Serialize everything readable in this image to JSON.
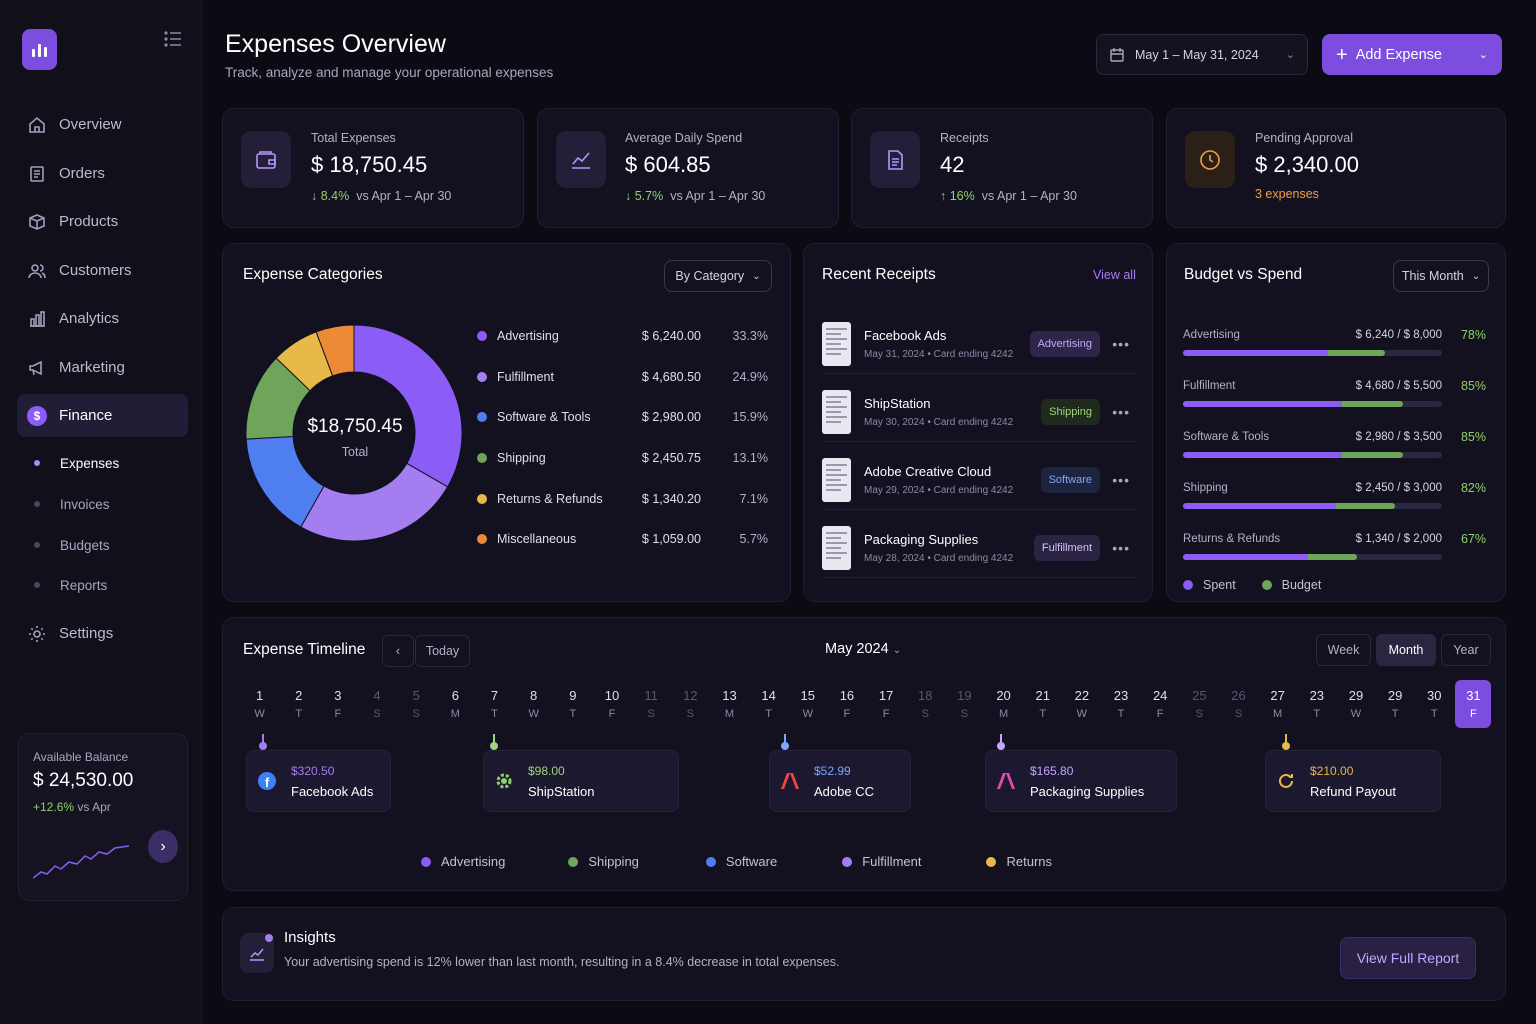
{
  "sidebar": {
    "nav": [
      {
        "label": "Overview",
        "icon": "home-icon"
      },
      {
        "label": "Orders",
        "icon": "orders-icon"
      },
      {
        "label": "Products",
        "icon": "box-icon"
      },
      {
        "label": "Customers",
        "icon": "users-icon"
      },
      {
        "label": "Analytics",
        "icon": "chart-icon"
      },
      {
        "label": "Marketing",
        "icon": "megaphone-icon"
      },
      {
        "label": "Finance",
        "icon": "dollar-icon"
      }
    ],
    "finance_sub": [
      "Expenses",
      "Invoices",
      "Budgets",
      "Reports"
    ],
    "settings": "Settings",
    "balance": {
      "label": "Available Balance",
      "amount": "$ 24,530.00",
      "change": "+12.6%",
      "change_suffix": "vs Apr"
    }
  },
  "header": {
    "title": "Expenses Overview",
    "subtitle": "Track, analyze and manage your operational expenses",
    "date_range": "May 1 – May 31, 2024",
    "add_label": "Add Expense"
  },
  "stats": [
    {
      "label": "Total Expenses",
      "value": "$ 18,750.45",
      "change": "8.4%",
      "suffix": "vs Apr 1 – Apr 30",
      "arrow": "↓"
    },
    {
      "label": "Average Daily Spend",
      "value": "$ 604.85",
      "change": "5.7%",
      "suffix": "vs Apr 1 – Apr 30",
      "arrow": "↓"
    },
    {
      "label": "Receipts",
      "value": "42",
      "change": "16%",
      "suffix": "vs Apr 1 – Apr 30",
      "arrow": "↑"
    },
    {
      "label": "Pending Approval",
      "value": "$ 2,340.00",
      "note": "3 expenses"
    }
  ],
  "categories": {
    "title": "Expense Categories",
    "filter": "By Category",
    "total": "$18,750.45",
    "total_label": "Total",
    "items": [
      {
        "name": "Advertising",
        "amount": "$ 6,240.00",
        "pct": "33.3%",
        "color": "#8b5cf6"
      },
      {
        "name": "Fulfillment",
        "amount": "$ 4,680.50",
        "pct": "24.9%",
        "color": "#a47ef0"
      },
      {
        "name": "Software & Tools",
        "amount": "$ 2,980.00",
        "pct": "15.9%",
        "color": "#4f7ef0"
      },
      {
        "name": "Shipping",
        "amount": "$ 2,450.75",
        "pct": "13.1%",
        "color": "#6fa45b"
      },
      {
        "name": "Returns & Refunds",
        "amount": "$ 1,340.20",
        "pct": "7.1%",
        "color": "#e6b949"
      },
      {
        "name": "Miscellaneous",
        "amount": "$ 1,059.00",
        "pct": "5.7%",
        "color": "#ec8a36"
      }
    ]
  },
  "chart_data": {
    "type": "pie",
    "categories": [
      "Advertising",
      "Fulfillment",
      "Software & Tools",
      "Shipping",
      "Returns & Refunds",
      "Miscellaneous"
    ],
    "values": [
      33.3,
      24.9,
      15.9,
      13.1,
      7.1,
      5.7
    ],
    "title": "Expense Categories"
  },
  "receipts": {
    "title": "Recent Receipts",
    "view_all": "View all",
    "items": [
      {
        "name": "Facebook Ads",
        "meta": "May 31, 2024  •  Card ending 4242",
        "tag": "Advertising",
        "tag_color": "#c4a6ff",
        "tag_bg": "#2e2548"
      },
      {
        "name": "ShipStation",
        "meta": "May 30, 2024  •  Card ending 4242",
        "tag": "Shipping",
        "tag_color": "#9fd67d",
        "tag_bg": "#1f2a1d"
      },
      {
        "name": "Adobe Creative Cloud",
        "meta": "May 29, 2024  •  Card ending 4242",
        "tag": "Software",
        "tag_color": "#7ea4ff",
        "tag_bg": "#1c2440"
      },
      {
        "name": "Packaging Supplies",
        "meta": "May 28, 2024  •  Card ending 4242",
        "tag": "Fulfillment",
        "tag_color": "#d4c4ff",
        "tag_bg": "#2a2342"
      }
    ]
  },
  "budget": {
    "title": "Budget vs Spend",
    "filter": "This Month",
    "items": [
      {
        "name": "Advertising",
        "value": "$ 6,240 / $ 8,000",
        "pct": "78%",
        "spent": 0.78
      },
      {
        "name": "Fulfillment",
        "value": "$ 4,680 / $ 5,500",
        "pct": "85%",
        "spent": 0.85
      },
      {
        "name": "Software & Tools",
        "value": "$ 2,980 / $ 3,500",
        "pct": "85%",
        "spent": 0.85
      },
      {
        "name": "Shipping",
        "value": "$ 2,450 / $ 3,000",
        "pct": "82%",
        "spent": 0.82
      },
      {
        "name": "Returns & Refunds",
        "value": "$ 1,340 / $ 2,000",
        "pct": "67%",
        "spent": 0.67
      }
    ],
    "legend_spent": "Spent",
    "legend_budget": "Budget"
  },
  "timeline": {
    "title": "Expense Timeline",
    "today": "Today",
    "month": "May 2024",
    "views": [
      "Week",
      "Month",
      "Year"
    ],
    "days": [
      {
        "d": "1",
        "w": "W"
      },
      {
        "d": "2",
        "w": "T"
      },
      {
        "d": "3",
        "w": "F"
      },
      {
        "d": "4",
        "w": "S"
      },
      {
        "d": "5",
        "w": "S"
      },
      {
        "d": "6",
        "w": "M"
      },
      {
        "d": "7",
        "w": "T"
      },
      {
        "d": "8",
        "w": "W"
      },
      {
        "d": "9",
        "w": "T"
      },
      {
        "d": "10",
        "w": "F"
      },
      {
        "d": "11",
        "w": "S"
      },
      {
        "d": "12",
        "w": "S"
      },
      {
        "d": "13",
        "w": "M"
      },
      {
        "d": "14",
        "w": "T"
      },
      {
        "d": "15",
        "w": "W"
      },
      {
        "d": "16",
        "w": "F"
      },
      {
        "d": "17",
        "w": "F"
      },
      {
        "d": "18",
        "w": "S"
      },
      {
        "d": "19",
        "w": "S"
      },
      {
        "d": "20",
        "w": "M"
      },
      {
        "d": "21",
        "w": "T"
      },
      {
        "d": "22",
        "w": "W"
      },
      {
        "d": "23",
        "w": "T"
      },
      {
        "d": "24",
        "w": "F"
      },
      {
        "d": "25",
        "w": "S"
      },
      {
        "d": "26",
        "w": "S"
      },
      {
        "d": "27",
        "w": "M"
      },
      {
        "d": "23",
        "w": "T"
      },
      {
        "d": "29",
        "w": "W"
      },
      {
        "d": "29",
        "w": "T"
      },
      {
        "d": "30",
        "w": "T"
      },
      {
        "d": "31",
        "w": "F"
      }
    ],
    "events": [
      {
        "amount": "$320.50",
        "name": "Facebook Ads",
        "color": "#a47ef0",
        "icon": "facebook-icon"
      },
      {
        "amount": "$98.00",
        "name": "ShipStation",
        "color": "#9fd67d",
        "icon": "shipstation-icon"
      },
      {
        "amount": "$52.99",
        "name": "Adobe CC",
        "color": "#7ea4ff",
        "icon": "adobe-icon"
      },
      {
        "amount": "$165.80",
        "name": "Packaging Supplies",
        "color": "#c4a6ff",
        "icon": "packaging-icon"
      },
      {
        "amount": "$210.00",
        "name": "Refund Payout",
        "color": "#e6b949",
        "icon": "refund-icon"
      }
    ],
    "legend": [
      {
        "name": "Advertising",
        "color": "#8b5cf6"
      },
      {
        "name": "Shipping",
        "color": "#6fa45b"
      },
      {
        "name": "Software",
        "color": "#4f7ef0"
      },
      {
        "name": "Fulfillment",
        "color": "#a47ef0"
      },
      {
        "name": "Returns",
        "color": "#e6b949"
      }
    ]
  },
  "insights": {
    "title": "Insights",
    "text": "Your advertising spend is 12% lower than last month, resulting in a 8.4% decrease in total expenses.",
    "button": "View Full Report"
  }
}
